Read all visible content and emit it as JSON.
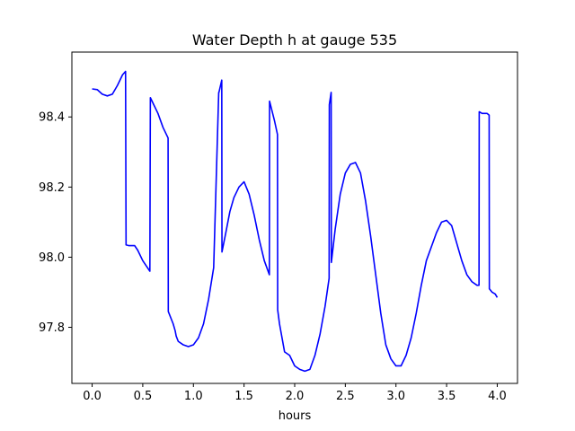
{
  "chart_data": {
    "type": "line",
    "title": "Water Depth h at gauge 535",
    "xlabel": "hours",
    "ylabel": "",
    "xlim": [
      -0.2,
      4.2
    ],
    "ylim": [
      97.64,
      98.585
    ],
    "xticks": [
      0.0,
      0.5,
      1.0,
      1.5,
      2.0,
      2.5,
      3.0,
      3.5,
      4.0
    ],
    "xtick_labels": [
      "0.0",
      "0.5",
      "1.0",
      "1.5",
      "2.0",
      "2.5",
      "3.0",
      "3.5",
      "4.0"
    ],
    "yticks": [
      97.8,
      98.0,
      98.2,
      98.4
    ],
    "ytick_labels": [
      "97.8",
      "98.0",
      "98.2",
      "98.4"
    ],
    "grid": false,
    "legend": false,
    "series": [
      {
        "color": "#0000ff",
        "x": [
          0.0,
          0.05,
          0.1,
          0.15,
          0.2,
          0.25,
          0.3,
          0.33,
          0.335,
          0.36,
          0.42,
          0.45,
          0.5,
          0.57,
          0.575,
          0.6,
          0.65,
          0.7,
          0.75,
          0.752,
          0.8,
          0.82,
          0.83,
          0.85,
          0.9,
          0.95,
          1.0,
          1.05,
          1.1,
          1.15,
          1.2,
          1.25,
          1.252,
          1.28,
          1.282,
          1.32,
          1.36,
          1.4,
          1.45,
          1.5,
          1.55,
          1.6,
          1.65,
          1.7,
          1.75,
          1.752,
          1.8,
          1.83,
          1.832,
          1.85,
          1.9,
          1.95,
          2.0,
          2.05,
          2.1,
          2.15,
          2.2,
          2.25,
          2.3,
          2.34,
          2.342,
          2.36,
          2.362,
          2.4,
          2.45,
          2.5,
          2.55,
          2.6,
          2.65,
          2.7,
          2.75,
          2.8,
          2.85,
          2.9,
          2.95,
          3.0,
          3.05,
          3.1,
          3.15,
          3.2,
          3.25,
          3.3,
          3.35,
          3.4,
          3.45,
          3.5,
          3.55,
          3.6,
          3.65,
          3.7,
          3.75,
          3.8,
          3.82,
          3.822,
          3.85,
          3.9,
          3.92,
          3.922,
          3.95,
          3.98,
          4.0
        ],
        "y": [
          98.48,
          98.478,
          98.465,
          98.46,
          98.465,
          98.49,
          98.52,
          98.53,
          98.035,
          98.033,
          98.033,
          98.02,
          97.99,
          97.96,
          98.455,
          98.44,
          98.41,
          98.37,
          98.34,
          97.845,
          97.81,
          97.79,
          97.775,
          97.76,
          97.75,
          97.745,
          97.75,
          97.77,
          97.81,
          97.88,
          97.97,
          98.47,
          98.47,
          98.505,
          98.015,
          98.07,
          98.13,
          98.17,
          98.2,
          98.215,
          98.18,
          98.12,
          98.05,
          97.99,
          97.95,
          98.445,
          98.39,
          98.35,
          97.85,
          97.81,
          97.73,
          97.72,
          97.69,
          97.68,
          97.675,
          97.68,
          97.72,
          97.78,
          97.86,
          97.94,
          98.435,
          98.47,
          97.985,
          98.08,
          98.18,
          98.24,
          98.265,
          98.27,
          98.24,
          98.16,
          98.06,
          97.95,
          97.84,
          97.75,
          97.71,
          97.69,
          97.69,
          97.72,
          97.77,
          97.84,
          97.92,
          97.99,
          98.03,
          98.07,
          98.1,
          98.105,
          98.09,
          98.04,
          97.99,
          97.95,
          97.93,
          97.92,
          97.92,
          98.415,
          98.41,
          98.41,
          98.405,
          97.91,
          97.9,
          97.895,
          97.885
        ]
      }
    ]
  }
}
